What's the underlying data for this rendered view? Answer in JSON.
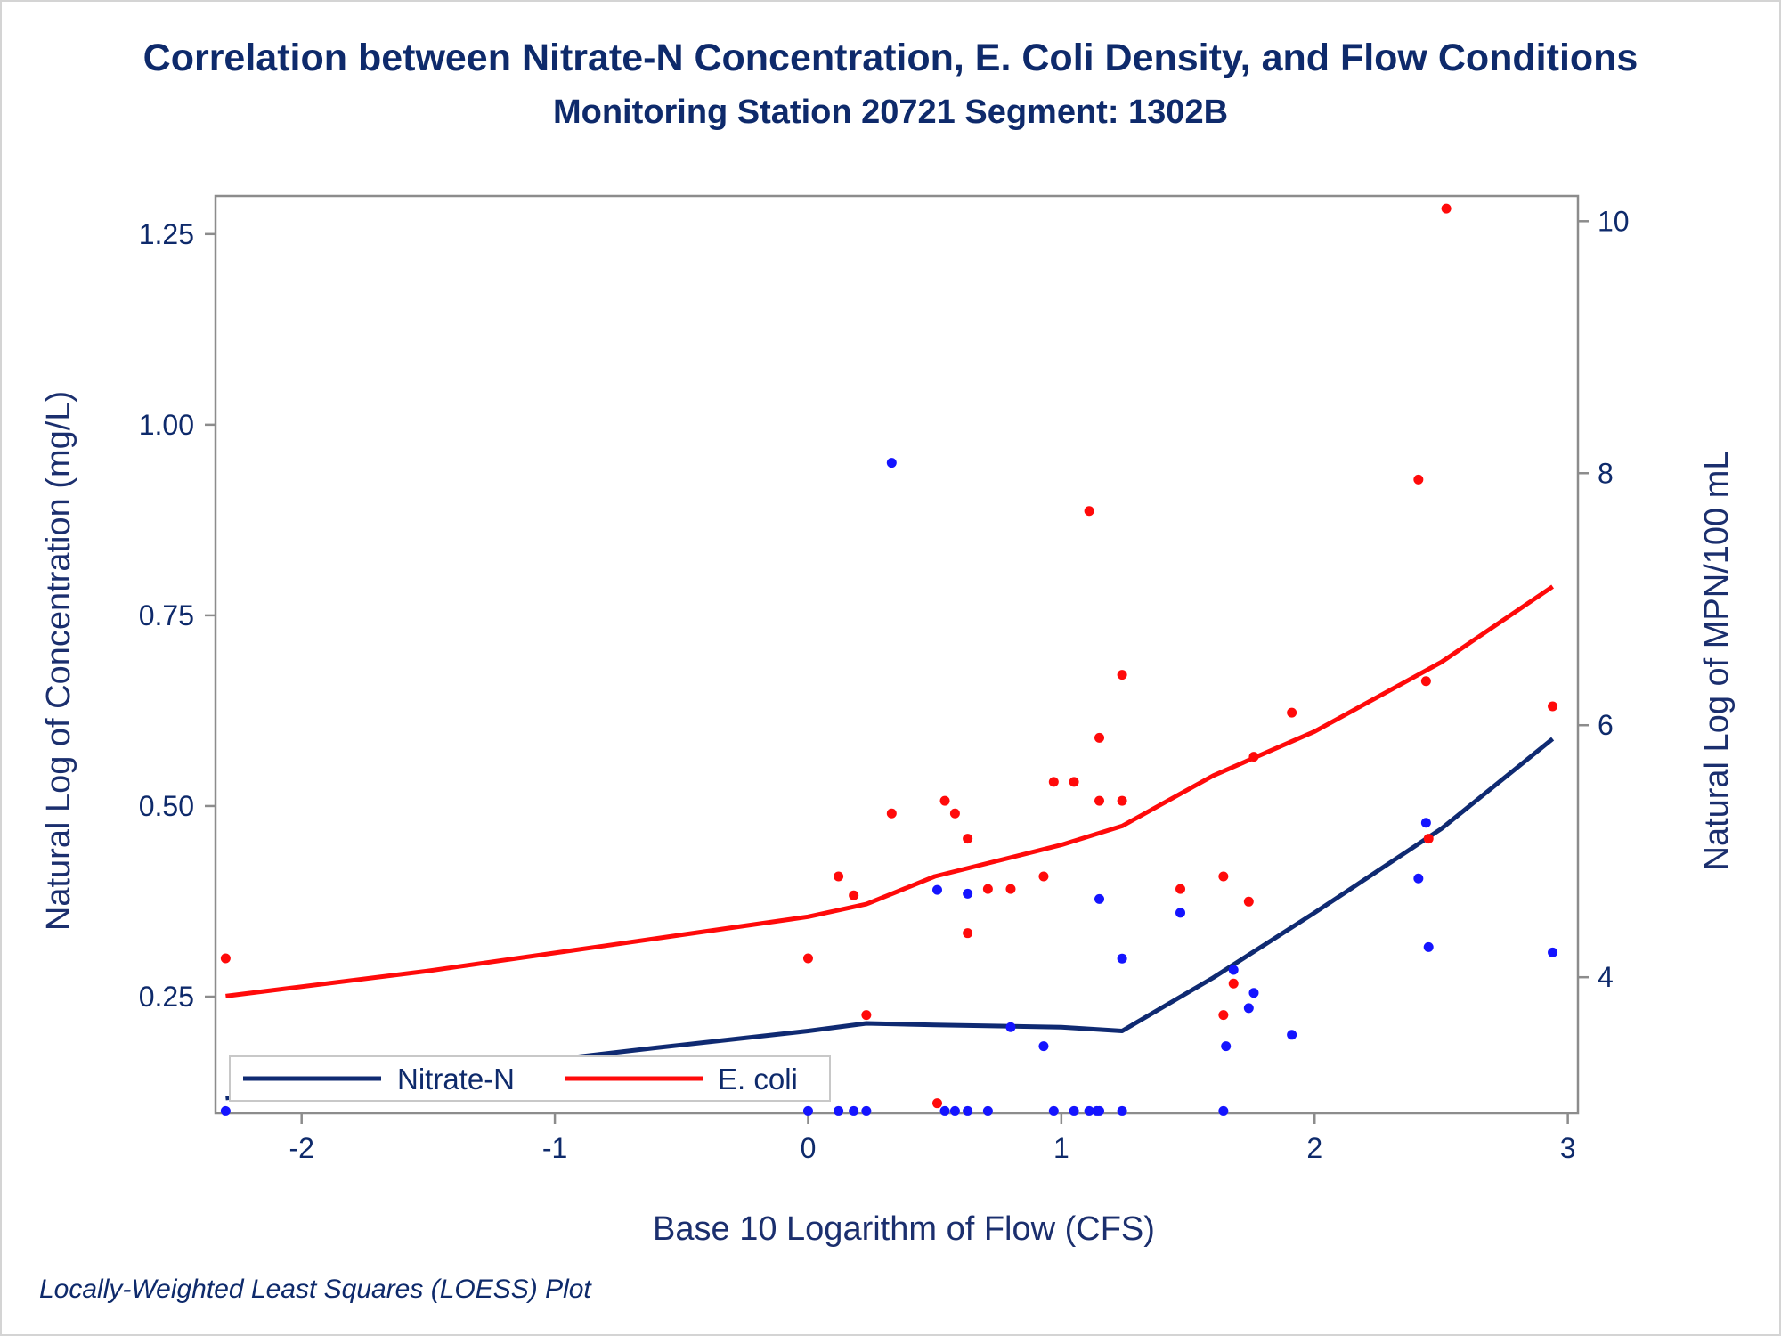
{
  "title": "Correlation between Nitrate-N Concentration, E. Coli Density, and Flow Conditions",
  "subtitle": "Monitoring Station 20721 Segment: 1302B",
  "footnote": "Locally-Weighted Least Squares (LOESS) Plot",
  "colors": {
    "nitrate": "#0f2a72",
    "nitrate_point": "#1414ff",
    "ecoli": "#ff0a0a",
    "text": "#0e2a6b",
    "axis": "#888888"
  },
  "chart_data": {
    "type": "scatter",
    "title": "Correlation between Nitrate-N Concentration, E. Coli Density, and Flow Conditions",
    "subtitle": "Monitoring Station 20721 Segment: 1302B",
    "xlabel": "Base 10 Logarithm of Flow (CFS)",
    "ylabel": "Natural Log of Concentration (mg/L)",
    "y2label": "Natural Log of MPN/100 mL",
    "xlim": [
      -2.34,
      3.04
    ],
    "ylim": [
      0.097,
      1.3
    ],
    "y2lim": [
      2.92,
      10.2
    ],
    "x_ticks": [
      -2,
      -1,
      0,
      1,
      2,
      3
    ],
    "y_ticks": [
      0.25,
      0.5,
      0.75,
      1.0
    ],
    "y_tick_labels": [
      "0.25",
      "0.50",
      "0.75",
      "1.00",
      "1.25"
    ],
    "y_ticks_all": [
      0.25,
      0.5,
      0.75,
      1.0,
      1.25
    ],
    "y2_ticks": [
      4,
      6,
      8,
      10
    ],
    "grid": false,
    "legend": {
      "placement": "bottom-left",
      "entries": [
        "Nitrate-N",
        "E. coli"
      ]
    },
    "series": [
      {
        "name": "Nitrate-N",
        "axis": "left",
        "color": "#0f2a72",
        "point_color": "#1414ff",
        "points": [
          [
            -2.3,
            0.1
          ],
          [
            0.0,
            0.1
          ],
          [
            0.12,
            0.1
          ],
          [
            0.18,
            0.1
          ],
          [
            0.23,
            0.1
          ],
          [
            0.33,
            0.95
          ],
          [
            0.51,
            0.39
          ],
          [
            0.54,
            0.1
          ],
          [
            0.58,
            0.1
          ],
          [
            0.63,
            0.1
          ],
          [
            0.63,
            0.385
          ],
          [
            0.71,
            0.1
          ],
          [
            0.8,
            0.21
          ],
          [
            0.93,
            0.185
          ],
          [
            0.97,
            0.1
          ],
          [
            1.05,
            0.1
          ],
          [
            1.11,
            0.1
          ],
          [
            1.14,
            0.1
          ],
          [
            1.15,
            0.1
          ],
          [
            1.15,
            0.378
          ],
          [
            1.24,
            0.1
          ],
          [
            1.24,
            0.3
          ],
          [
            1.47,
            0.36
          ],
          [
            1.64,
            0.1
          ],
          [
            1.65,
            0.185
          ],
          [
            1.68,
            0.285
          ],
          [
            1.74,
            0.235
          ],
          [
            1.76,
            0.255
          ],
          [
            1.91,
            0.2
          ],
          [
            2.41,
            0.405
          ],
          [
            2.44,
            0.478
          ],
          [
            2.45,
            0.315
          ],
          [
            2.94,
            0.308
          ]
        ],
        "fit": [
          [
            -2.3,
            0.117
          ],
          [
            -1.8,
            0.135
          ],
          [
            -1.2,
            0.16
          ],
          [
            -0.6,
            0.183
          ],
          [
            0.0,
            0.205
          ],
          [
            0.23,
            0.215
          ],
          [
            0.5,
            0.213
          ],
          [
            1.0,
            0.21
          ],
          [
            1.24,
            0.205
          ],
          [
            1.6,
            0.275
          ],
          [
            2.0,
            0.36
          ],
          [
            2.5,
            0.47
          ],
          [
            2.94,
            0.588
          ]
        ]
      },
      {
        "name": "E. coli",
        "axis": "right",
        "color": "#ff0a0a",
        "point_color": "#ff0a0a",
        "points": [
          [
            -2.3,
            4.15
          ],
          [
            0.0,
            4.15
          ],
          [
            0.12,
            4.8
          ],
          [
            0.18,
            4.65
          ],
          [
            0.23,
            3.7
          ],
          [
            0.33,
            5.3
          ],
          [
            0.51,
            3.0
          ],
          [
            0.54,
            5.4
          ],
          [
            0.58,
            5.3
          ],
          [
            0.63,
            5.1
          ],
          [
            0.63,
            4.35
          ],
          [
            0.71,
            4.7
          ],
          [
            0.8,
            4.7
          ],
          [
            0.93,
            4.8
          ],
          [
            0.97,
            5.55
          ],
          [
            1.05,
            5.55
          ],
          [
            1.11,
            7.7
          ],
          [
            1.15,
            5.9
          ],
          [
            1.15,
            5.4
          ],
          [
            1.24,
            6.4
          ],
          [
            1.24,
            5.4
          ],
          [
            1.47,
            4.7
          ],
          [
            1.64,
            4.8
          ],
          [
            1.64,
            3.7
          ],
          [
            1.68,
            3.95
          ],
          [
            1.74,
            4.6
          ],
          [
            1.76,
            5.75
          ],
          [
            1.91,
            6.1
          ],
          [
            2.41,
            7.95
          ],
          [
            2.44,
            6.35
          ],
          [
            2.45,
            5.1
          ],
          [
            2.52,
            10.1
          ],
          [
            2.94,
            6.15
          ]
        ],
        "fit": [
          [
            -2.3,
            3.85
          ],
          [
            -1.5,
            4.05
          ],
          [
            -0.8,
            4.25
          ],
          [
            0.0,
            4.48
          ],
          [
            0.23,
            4.58
          ],
          [
            0.5,
            4.8
          ],
          [
            1.0,
            5.05
          ],
          [
            1.24,
            5.2
          ],
          [
            1.6,
            5.6
          ],
          [
            2.0,
            5.95
          ],
          [
            2.5,
            6.5
          ],
          [
            2.94,
            7.1
          ]
        ]
      }
    ]
  }
}
